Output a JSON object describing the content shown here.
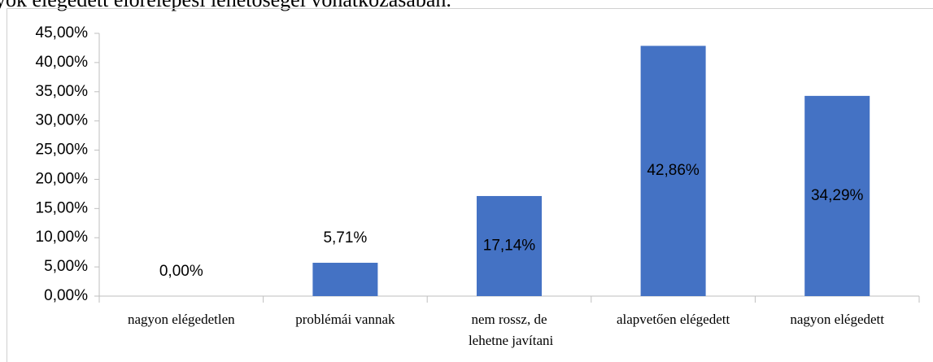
{
  "chart_data": {
    "type": "bar",
    "title": "yok elégedett előrelépési lehetőségei vonatkozásában.",
    "categories": [
      "nagyon elégedetlen",
      "problémái vannak",
      "nem rossz, de lehetne javítani",
      "alapvetően elégedett",
      "nagyon elégedett"
    ],
    "values": [
      0,
      5.71,
      17.14,
      42.86,
      34.29
    ],
    "value_labels": [
      "0,00%",
      "5,71%",
      "17,14%",
      "42,86%",
      "34,29%"
    ],
    "color": "#4472c4",
    "ylim": [
      0,
      45
    ],
    "yticks": [
      {
        "value": 0,
        "label": "0,00%"
      },
      {
        "value": 5,
        "label": "5,00%"
      },
      {
        "value": 10,
        "label": "10,00%"
      },
      {
        "value": 15,
        "label": "15,00%"
      },
      {
        "value": 20,
        "label": "20,00%"
      },
      {
        "value": 25,
        "label": "25,00%"
      },
      {
        "value": 30,
        "label": "30,00%"
      },
      {
        "value": 35,
        "label": "35,00%"
      },
      {
        "value": 40,
        "label": "40,00%"
      },
      {
        "value": 45,
        "label": "45,00%"
      }
    ],
    "grid": false
  }
}
